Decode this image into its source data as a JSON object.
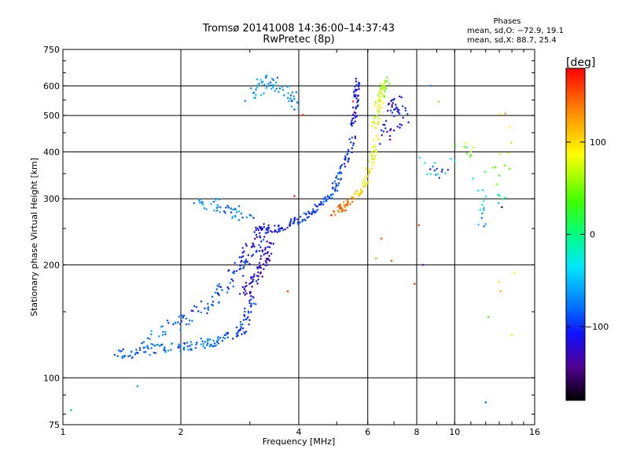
{
  "chart_data": {
    "type": "scatter",
    "title": "Tromsø 20141008 14:36:00–14:37:43",
    "subtitle": "RwPretec (8p)",
    "xlabel": "Frequency [MHz]",
    "ylabel": "Stationary phase Virtual Height [km]",
    "x_scale": "log",
    "y_scale": "log",
    "xlim": [
      1,
      16
    ],
    "ylim": [
      75,
      750
    ],
    "x_ticks": [
      1,
      2,
      4,
      6,
      8,
      10,
      16
    ],
    "y_ticks": [
      75,
      100,
      200,
      300,
      400,
      500,
      600,
      750
    ],
    "x_grid": [
      2,
      4,
      6,
      8,
      10
    ],
    "y_grid": [
      100,
      200,
      300,
      400,
      500,
      600
    ],
    "grid": true,
    "phases_box": {
      "title": "Phases",
      "line1": "mean, sd,O: −72.9, 19.1",
      "line2": "mean, sd,X:  88.7, 25.4"
    },
    "colorbar": {
      "label": "[deg]",
      "ticks": [
        100,
        0,
        -100
      ],
      "range": [
        -180,
        180
      ],
      "colormap": "rainbow"
    },
    "traces": [
      {
        "x": [
          1.35,
          1.45,
          1.6,
          1.75,
          1.9,
          2.05,
          2.2,
          2.35,
          2.5,
          2.65,
          2.8,
          2.9,
          2.97,
          3.03
        ],
        "y": [
          115,
          116,
          118,
          119,
          120,
          121,
          122,
          124,
          126,
          128,
          132,
          138,
          148,
          162
        ],
        "phase": [
          -90,
          -85,
          -88,
          -80,
          -78,
          -82,
          -85,
          -80,
          -75,
          -85,
          -90,
          -95,
          -100,
          -105
        ],
        "spread": 0.03
      },
      {
        "x": [
          1.6,
          1.8,
          2.0,
          2.2,
          2.4,
          2.55,
          2.7,
          2.85,
          2.95,
          3.05,
          3.15,
          3.25
        ],
        "y": [
          125,
          135,
          142,
          150,
          160,
          172,
          185,
          198,
          210,
          222,
          235,
          250
        ],
        "phase": [
          -80,
          -75,
          -85,
          -90,
          -88,
          -92,
          -95,
          -100,
          -105,
          -110,
          -108,
          -112
        ],
        "spread": 0.04
      },
      {
        "x": [
          2.9,
          3.0,
          3.1,
          3.2,
          3.25,
          3.3,
          3.35
        ],
        "y": [
          165,
          175,
          185,
          195,
          205,
          215,
          228
        ],
        "phase": [
          -120,
          -125,
          -118,
          -128,
          -130,
          -122,
          -126
        ],
        "spread": 0.03
      },
      {
        "x": [
          3.1,
          3.3,
          3.5,
          3.7,
          3.9,
          4.1,
          4.3,
          4.5,
          4.7,
          4.9,
          5.05,
          5.2,
          5.35,
          5.5
        ],
        "y": [
          250,
          247,
          250,
          254,
          260,
          267,
          275,
          285,
          298,
          315,
          335,
          360,
          395,
          440
        ],
        "phase": [
          -110,
          -115,
          -108,
          -105,
          -100,
          -95,
          -100,
          -98,
          -95,
          -90,
          -92,
          -100,
          -105,
          -110
        ],
        "spread": 0.02
      },
      {
        "x": [
          5.5,
          5.55,
          5.6,
          5.62,
          5.65
        ],
        "y": [
          460,
          500,
          540,
          580,
          620
        ],
        "phase": [
          -110,
          -120,
          -115,
          -118,
          -112
        ],
        "spread": 0.015
      },
      {
        "x": [
          4.9,
          5.1,
          5.3,
          5.5,
          5.7,
          5.9,
          6.05,
          6.2,
          6.35
        ],
        "y": [
          275,
          282,
          290,
          300,
          315,
          335,
          360,
          395,
          440
        ],
        "phase": [
          160,
          150,
          140,
          120,
          110,
          100,
          95,
          90,
          88
        ],
        "spread": 0.02
      },
      {
        "x": [
          6.2,
          6.3,
          6.4,
          6.5,
          6.6,
          6.7
        ],
        "y": [
          460,
          500,
          540,
          570,
          600,
          620
        ],
        "phase": [
          95,
          90,
          85,
          80,
          75,
          70
        ],
        "spread": 0.02
      },
      {
        "x": [
          2.2,
          2.4,
          2.6,
          2.8,
          3.0
        ],
        "y": [
          295,
          290,
          285,
          275,
          270
        ],
        "phase": [
          -80,
          -70,
          -85,
          -75,
          -90
        ],
        "spread": 0.04
      },
      {
        "x": [
          3.0,
          3.2,
          3.4,
          3.6,
          3.8,
          4.0
        ],
        "y": [
          560,
          600,
          620,
          590,
          560,
          530
        ],
        "phase": [
          -70,
          -60,
          -75,
          -65,
          -80,
          -70
        ],
        "spread": 0.04
      },
      {
        "x": [
          6.6,
          6.8,
          7.0,
          7.2,
          7.5
        ],
        "y": [
          420,
          480,
          550,
          520,
          460
        ],
        "phase": [
          -120,
          -110,
          -115,
          -105,
          -125
        ],
        "spread": 0.04
      },
      {
        "x": [
          8.3,
          9.0,
          11.0,
          12.0,
          13.0,
          13.8
        ],
        "y": [
          380,
          340,
          420,
          260,
          320,
          500
        ],
        "phase": [
          20,
          -110,
          100,
          -90,
          40,
          120
        ],
        "spread": 0.06
      }
    ],
    "scatter_points": [
      {
        "x": 1.05,
        "y": 82,
        "phase": -60
      },
      {
        "x": 1.55,
        "y": 95,
        "phase": -70
      },
      {
        "x": 3.75,
        "y": 170,
        "phase": 170
      },
      {
        "x": 3.9,
        "y": 305,
        "phase": 175
      },
      {
        "x": 4.1,
        "y": 502,
        "phase": 170
      },
      {
        "x": 5.5,
        "y": 545,
        "phase": 170
      },
      {
        "x": 6.5,
        "y": 235,
        "phase": 160
      },
      {
        "x": 6.3,
        "y": 208,
        "phase": 130
      },
      {
        "x": 6.9,
        "y": 205,
        "phase": 160
      },
      {
        "x": 7.9,
        "y": 178,
        "phase": 170
      },
      {
        "x": 8.1,
        "y": 255,
        "phase": 170
      },
      {
        "x": 8.3,
        "y": 200,
        "phase": -140
      },
      {
        "x": 12.0,
        "y": 86,
        "phase": -90
      },
      {
        "x": 13.0,
        "y": 180,
        "phase": 110
      },
      {
        "x": 13.1,
        "y": 170,
        "phase": 130
      },
      {
        "x": 14.2,
        "y": 190,
        "phase": 100
      },
      {
        "x": 14.0,
        "y": 130,
        "phase": 110
      },
      {
        "x": 12.2,
        "y": 145,
        "phase": 40
      },
      {
        "x": 13.2,
        "y": 285,
        "phase": -160
      },
      {
        "x": 8.7,
        "y": 600,
        "phase": -80
      },
      {
        "x": 9.1,
        "y": 545,
        "phase": 120
      }
    ]
  }
}
